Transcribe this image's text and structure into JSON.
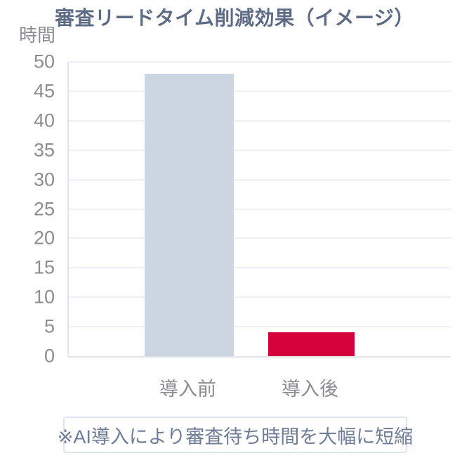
{
  "chart_data": {
    "type": "bar",
    "title": "審査リードタイム削減効果（イメージ）",
    "unit_label": "時間",
    "categories": [
      "導入前",
      "導入後"
    ],
    "values": [
      48,
      4
    ],
    "bar_colors": [
      "#ccd5e2",
      "#d6023c"
    ],
    "y_ticks": [
      0,
      5,
      10,
      15,
      20,
      25,
      30,
      35,
      40,
      45,
      50
    ],
    "ylim": [
      0,
      50
    ],
    "grid": true,
    "legend": false,
    "note": "※AI導入により審査待ち時間を大幅に短縮"
  },
  "colors": {
    "background": "#ffffff",
    "title": "#5d6b86",
    "tick_label": "#8b8d93",
    "unit_label": "#8b8e96",
    "grid_line": "#edeff5",
    "axis_line": "#e2e5ed",
    "bar_before": "#ccd5e2",
    "bar_after": "#d6023c",
    "note_border": "#dee5f2",
    "note_text": "#6e7c98"
  }
}
